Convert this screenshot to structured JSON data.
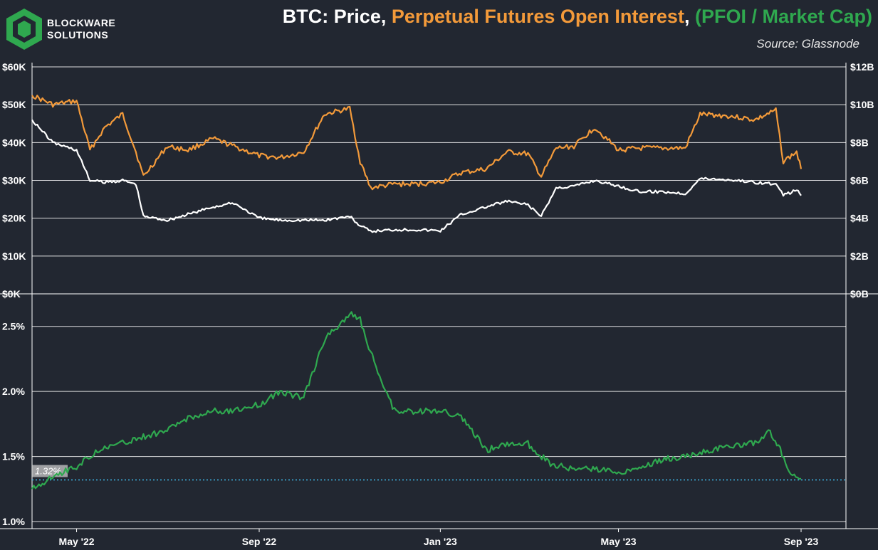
{
  "header": {
    "brand_line1": "BLOCKWARE",
    "brand_line2": "SOLUTIONS",
    "title_part1": "BTC: Price, ",
    "title_part2": "Perpetual Futures Open Interest",
    "title_part3": ", ",
    "title_part4": "(PFOI / Market Cap)",
    "source": "Source: Glassnode"
  },
  "colors": {
    "background": "#222731",
    "price": "#ffffff",
    "open_interest": "#f39a3a",
    "ratio": "#2fa84f",
    "reference_line": "#3fb8e8",
    "grid": "#ffffff",
    "logo": "#2fa84f"
  },
  "chart_data": [
    {
      "type": "line",
      "grid": true,
      "x_ticks": [
        "May '22",
        "Sep '22",
        "Jan '23",
        "May '23",
        "Sep '23"
      ],
      "left_axis": {
        "ticks": [
          "$0K",
          "$10K",
          "$20K",
          "$30K",
          "$40K",
          "$50K",
          "$60K"
        ],
        "ylim": [
          0,
          60000
        ]
      },
      "right_axis": {
        "ticks": [
          "$0B",
          "$2B",
          "$4B",
          "$6B",
          "$8B",
          "$10B",
          "$12B"
        ],
        "ylim": [
          0,
          12000000000
        ]
      },
      "x": [
        "2022-04-01",
        "2022-04-15",
        "2022-05-01",
        "2022-05-10",
        "2022-05-20",
        "2022-06-01",
        "2022-06-10",
        "2022-06-15",
        "2022-07-01",
        "2022-07-15",
        "2022-08-01",
        "2022-08-15",
        "2022-09-01",
        "2022-09-15",
        "2022-10-01",
        "2022-10-15",
        "2022-11-01",
        "2022-11-08",
        "2022-11-15",
        "2022-12-01",
        "2022-12-15",
        "2023-01-01",
        "2023-01-15",
        "2023-02-01",
        "2023-02-15",
        "2023-03-01",
        "2023-03-10",
        "2023-03-20",
        "2023-04-01",
        "2023-04-15",
        "2023-05-01",
        "2023-05-15",
        "2023-06-01",
        "2023-06-15",
        "2023-06-25",
        "2023-07-15",
        "2023-08-01",
        "2023-08-15",
        "2023-08-20",
        "2023-08-29",
        "2023-09-01"
      ],
      "series": [
        {
          "axis": "left",
          "color": "#ffffff",
          "values": [
            46000,
            40000,
            38000,
            30000,
            29500,
            30000,
            29000,
            20500,
            19500,
            21000,
            23000,
            24000,
            20000,
            19500,
            19500,
            19500,
            20500,
            18000,
            16500,
            17000,
            17000,
            16700,
            21000,
            23000,
            24500,
            23500,
            20500,
            28000,
            28500,
            30000,
            28500,
            27000,
            27000,
            26500,
            30500,
            30200,
            29500,
            29000,
            26000,
            27500,
            26000
          ]
        },
        {
          "axis": "right",
          "color": "#f39a3a",
          "values": [
            10500000000,
            10000000000,
            10200000000,
            7600000000,
            8800000000,
            9500000000,
            7500000000,
            6200000000,
            7800000000,
            7600000000,
            8200000000,
            7800000000,
            7300000000,
            7200000000,
            7500000000,
            9500000000,
            9800000000,
            7000000000,
            5600000000,
            5800000000,
            5800000000,
            5900000000,
            6400000000,
            6600000000,
            7500000000,
            7400000000,
            6200000000,
            7700000000,
            7800000000,
            8800000000,
            7600000000,
            7700000000,
            7700000000,
            7700000000,
            9500000000,
            9400000000,
            9200000000,
            9700000000,
            7000000000,
            7500000000,
            6600000000
          ]
        }
      ]
    },
    {
      "type": "line",
      "grid": true,
      "y_ticks": [
        "1.0%",
        "1.5%",
        "2.0%",
        "2.5%"
      ],
      "ylim": [
        1.0,
        2.75
      ],
      "reference_value": 1.32,
      "reference_label": "1.32%",
      "x": [
        "2022-04-01",
        "2022-04-15",
        "2022-05-01",
        "2022-05-15",
        "2022-06-01",
        "2022-06-15",
        "2022-07-01",
        "2022-07-15",
        "2022-08-01",
        "2022-08-15",
        "2022-09-01",
        "2022-09-15",
        "2022-10-01",
        "2022-10-15",
        "2022-11-01",
        "2022-11-08",
        "2022-11-15",
        "2022-12-01",
        "2022-12-15",
        "2023-01-01",
        "2023-01-15",
        "2023-02-01",
        "2023-02-15",
        "2023-03-01",
        "2023-03-15",
        "2023-04-01",
        "2023-04-15",
        "2023-05-01",
        "2023-05-15",
        "2023-06-01",
        "2023-06-15",
        "2023-07-01",
        "2023-07-15",
        "2023-08-01",
        "2023-08-10",
        "2023-08-18",
        "2023-08-25",
        "2023-09-01"
      ],
      "series": [
        {
          "name": "PFOI / Market Cap",
          "color": "#2fa84f",
          "values": [
            1.25,
            1.35,
            1.42,
            1.55,
            1.6,
            1.65,
            1.7,
            1.8,
            1.85,
            1.85,
            1.9,
            2.0,
            1.95,
            2.4,
            2.6,
            2.55,
            2.3,
            1.85,
            1.85,
            1.85,
            1.8,
            1.55,
            1.6,
            1.6,
            1.45,
            1.4,
            1.4,
            1.38,
            1.42,
            1.48,
            1.5,
            1.55,
            1.58,
            1.6,
            1.7,
            1.55,
            1.35,
            1.33
          ]
        }
      ]
    }
  ]
}
